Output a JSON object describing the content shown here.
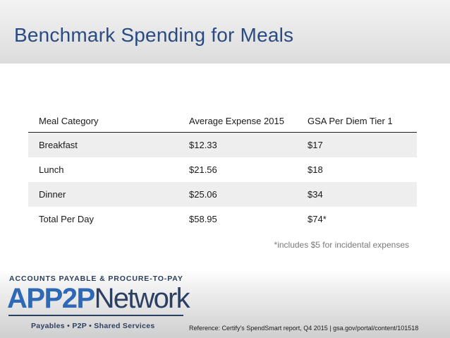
{
  "slide": {
    "title": "Benchmark Spending for Meals"
  },
  "table": {
    "headers": [
      "Meal Category",
      "Average Expense 2015",
      "GSA Per Diem Tier 1"
    ],
    "rows": [
      [
        "Breakfast",
        "$12.33",
        "$17"
      ],
      [
        "Lunch",
        "$21.56",
        "$18"
      ],
      [
        "Dinner",
        "$25.06",
        "$34"
      ],
      [
        "Total Per Day",
        "$58.95",
        "$74*"
      ]
    ]
  },
  "footnote": "*includes $5 for incidental expenses",
  "logo": {
    "top_line": "ACCOUNTS PAYABLE & PROCURE-TO-PAY",
    "brand_part1": "APP2P",
    "brand_part2": "Network",
    "tagline": "Payables  •  P2P  •  Shared Services"
  },
  "reference": "Reference: Certify's SpendSmart report, Q4 2015  |  gsa.gov/portal/content/101518",
  "colors": {
    "title": "#2a4a82",
    "brand_blue": "#2f69b5",
    "brand_navy": "#2b3f63"
  }
}
